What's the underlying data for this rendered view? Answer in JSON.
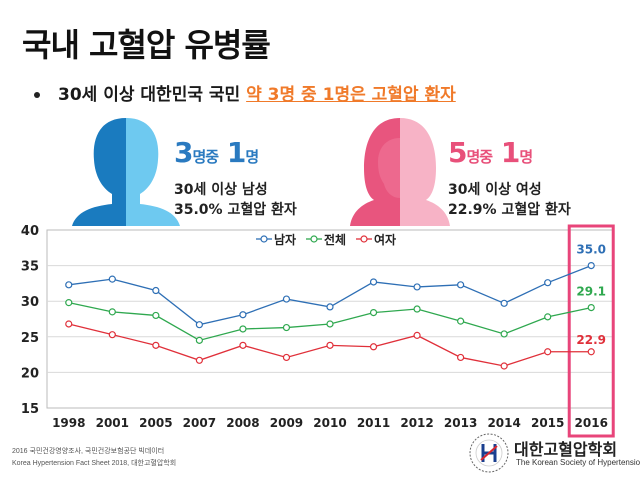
{
  "title": "국내 고혈압 유병률",
  "bullet": {
    "prefix": "30세 이상 대한민국 국민",
    "highlight": "약 3명 중 1명은 고혈압 환자"
  },
  "male": {
    "ratio_num1": "3",
    "ratio_word1": "명중",
    "ratio_num2": "1",
    "ratio_word2": "명",
    "line1": "30세 이상 남성",
    "line2": "35.0% 고혈압 환자",
    "color": "#2a7ac0"
  },
  "female": {
    "ratio_num1": "5",
    "ratio_word1": "명중",
    "ratio_num2": "1",
    "ratio_word2": "명",
    "line1": "30세 이상 여성",
    "line2": "22.9% 고혈압 환자",
    "color": "#e8507a"
  },
  "chart_data": {
    "type": "line",
    "x": [
      "1998",
      "2001",
      "2005",
      "2007",
      "2008",
      "2009",
      "2010",
      "2011",
      "2012",
      "2013",
      "2014",
      "2015",
      "2016"
    ],
    "ylim": [
      15,
      40
    ],
    "yticks": [
      15,
      20,
      25,
      30,
      35,
      40
    ],
    "grid": true,
    "legend_position": "top-center",
    "highlight_category": "2016",
    "series": [
      {
        "name": "남자",
        "color": "#2e6fb5",
        "values": [
          32.3,
          33.1,
          31.5,
          26.7,
          28.1,
          30.3,
          29.2,
          32.7,
          32.0,
          32.3,
          29.7,
          32.6,
          35.0
        ],
        "end_label": "35.0"
      },
      {
        "name": "전체",
        "color": "#2fa84f",
        "values": [
          29.8,
          28.5,
          28.0,
          24.5,
          26.1,
          26.3,
          26.8,
          28.4,
          28.9,
          27.2,
          25.4,
          27.8,
          29.1
        ],
        "end_label": "29.1"
      },
      {
        "name": "여자",
        "color": "#e0303a",
        "values": [
          26.8,
          25.3,
          23.8,
          21.7,
          23.8,
          22.1,
          23.8,
          23.6,
          25.2,
          22.1,
          20.9,
          22.9,
          22.9
        ],
        "end_label": "22.9"
      }
    ]
  },
  "footnotes": [
    "2016 국민건강영양조사, 국민건강보험공단 빅데이터",
    "Korea Hypertension Fact Sheet 2018, 대한고혈압학회"
  ],
  "org": {
    "name": "대한고혈압학회",
    "sub": "The Korean Society of Hypertension"
  }
}
